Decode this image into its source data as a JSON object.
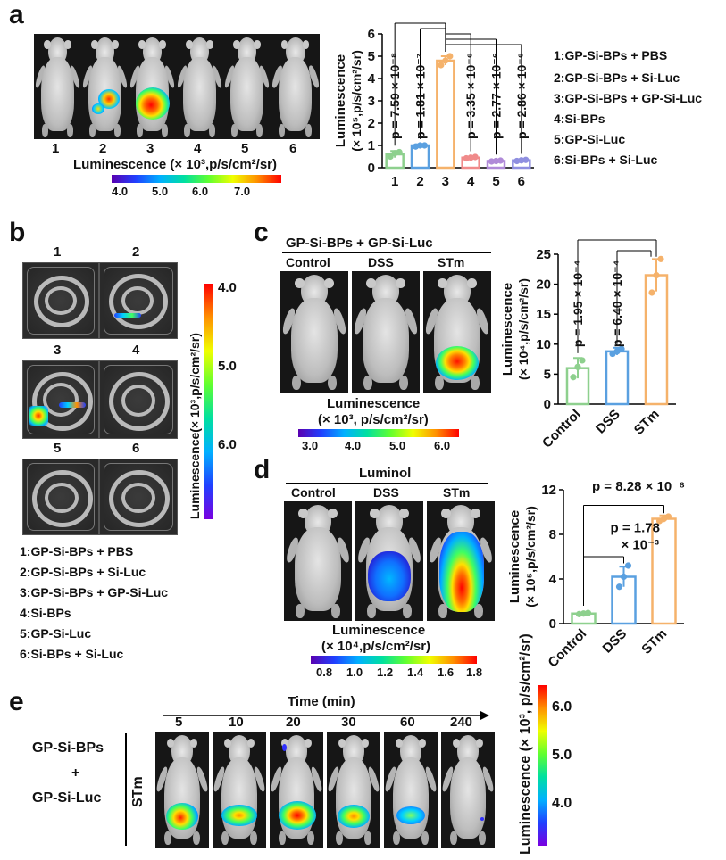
{
  "panels": {
    "a": {
      "label": "a",
      "mouse_numbers": [
        "1",
        "2",
        "3",
        "4",
        "5",
        "6"
      ],
      "colorbar_title": "Luminescence (× 10³,p/s/cm²/sr)",
      "colorbar_ticks": [
        "4.0",
        "5.0",
        "6.0",
        "7.0"
      ],
      "legend": [
        "1:GP-Si-BPs + PBS",
        "2:GP-Si-BPs + Si-Luc",
        "3:GP-Si-BPs + GP-Si-Luc",
        "4:Si-BPs",
        "5:GP-Si-Luc",
        "6:Si-BPs + Si-Luc"
      ],
      "chart": {
        "ylabel_line1": "Luminescence",
        "ylabel_line2": "(× 10⁵,p/s/cm²/sr)",
        "yticks": [
          "0",
          "1",
          "2",
          "3",
          "4",
          "5",
          "6"
        ],
        "xticks": [
          "1",
          "2",
          "3",
          "4",
          "5",
          "6"
        ],
        "pvalues": [
          "p = 7.59 × 10⁻⁸",
          "p = 1.81 × 10⁻⁷",
          "p = 3.35 × 10⁻⁶",
          "p = 2.77 × 10⁻⁶",
          "p = 2.86 × 10⁻⁶"
        ]
      }
    },
    "b": {
      "label": "b",
      "dish_numbers": [
        "1",
        "2",
        "3",
        "4",
        "5",
        "6"
      ],
      "colorbar_title": "Luminescence(× 10³,p/s/cm²/sr)",
      "colorbar_ticks": [
        "4.0",
        "5.0",
        "6.0"
      ],
      "legend": [
        "1:GP-Si-BPs + PBS",
        "2:GP-Si-BPs + Si-Luc",
        "3:GP-Si-BPs + GP-Si-Luc",
        "4:Si-BPs",
        "5:GP-Si-Luc",
        "6:Si-BPs + Si-Luc"
      ]
    },
    "c": {
      "label": "c",
      "title": "GP-Si-BPs + GP-Si-Luc",
      "groups": [
        "Control",
        "DSS",
        "STm"
      ],
      "colorbar_title_line1": "Luminescence",
      "colorbar_title_line2": "(× 10³, p/s/cm²/sr)",
      "colorbar_ticks": [
        "3.0",
        "4.0",
        "5.0",
        "6.0"
      ],
      "chart": {
        "ylabel_line1": "Luminescence",
        "ylabel_line2": "(× 10⁴,p/s/cm²/sr)",
        "yticks": [
          "0",
          "5",
          "10",
          "15",
          "20",
          "25"
        ],
        "xticks": [
          "Control",
          "DSS",
          "STm"
        ],
        "pvalues": [
          "p = 1.95 × 10⁻⁴",
          "p = 6.40 × 10⁻⁴"
        ]
      }
    },
    "d": {
      "label": "d",
      "title": "Luminol",
      "groups": [
        "Control",
        "DSS",
        "STm"
      ],
      "colorbar_title_line1": "Luminescence",
      "colorbar_title_line2": "(× 10⁴,p/s/cm²/sr)",
      "colorbar_ticks": [
        "0.8",
        "1.0",
        "1.2",
        "1.4",
        "1.6",
        "1.8"
      ],
      "chart": {
        "ylabel_line1": "Luminescence",
        "ylabel_line2": "(× 10⁵,p/s/cm²/sr)",
        "yticks": [
          "0",
          "4",
          "8",
          "12"
        ],
        "xticks": [
          "Control",
          "DSS",
          "STm"
        ],
        "p_top": "p = 8.28 × 10⁻⁶",
        "p_mid_line1": "p = 1.78",
        "p_mid_line2": "× 10⁻³"
      }
    },
    "e": {
      "label": "e",
      "axis_title": "Time (min)",
      "times": [
        "5",
        "10",
        "20",
        "30",
        "60",
        "240"
      ],
      "row_label_line1": "GP-Si-BPs",
      "row_label_line2": "+",
      "row_label_line3": "GP-Si-Luc",
      "side_label": "STm",
      "colorbar_title": "Luminescence (× 10³, p/s/cm²/sr)",
      "colorbar_ticks": [
        "4.0",
        "5.0",
        "6.0"
      ]
    }
  },
  "chart_data": [
    {
      "type": "bar",
      "panel": "a",
      "categories": [
        "1",
        "2",
        "3",
        "4",
        "5",
        "6"
      ],
      "values": [
        0.6,
        1.0,
        4.8,
        0.45,
        0.3,
        0.33
      ],
      "errors": [
        0.15,
        0.05,
        0.2,
        0.05,
        0.05,
        0.05
      ],
      "points": [
        [
          0.5,
          0.65,
          0.7
        ],
        [
          0.95,
          1.0,
          1.0
        ],
        [
          4.6,
          4.8,
          5.0
        ],
        [
          0.42,
          0.45,
          0.48
        ],
        [
          0.28,
          0.3,
          0.32
        ],
        [
          0.3,
          0.33,
          0.35
        ]
      ],
      "colors": [
        "#8ed08e",
        "#5aa0e0",
        "#f5b26b",
        "#f08a8a",
        "#b08ad8",
        "#8f8fe0"
      ],
      "ylim": [
        0,
        6
      ]
    },
    {
      "type": "bar",
      "panel": "c",
      "categories": [
        "Control",
        "DSS",
        "STm"
      ],
      "values": [
        6.0,
        8.8,
        21.5
      ],
      "errors": [
        1.7,
        0.6,
        2.7
      ],
      "points": [
        [
          4.5,
          6.2,
          7.3
        ],
        [
          8.4,
          8.8,
          9.2
        ],
        [
          18.6,
          21.5,
          24.2
        ]
      ],
      "colors": [
        "#8ed08e",
        "#5aa0e0",
        "#f5b26b"
      ],
      "ylim": [
        0,
        25
      ]
    },
    {
      "type": "bar",
      "panel": "d",
      "categories": [
        "Control",
        "DSS",
        "STm"
      ],
      "values": [
        0.9,
        4.2,
        9.4
      ],
      "errors": [
        0.1,
        0.9,
        0.3
      ],
      "points": [
        [
          0.85,
          0.9,
          0.95
        ],
        [
          3.3,
          4.2,
          5.2
        ],
        [
          9.2,
          9.4,
          9.6
        ]
      ],
      "colors": [
        "#8ed08e",
        "#5aa0e0",
        "#f5b26b"
      ],
      "ylim": [
        0,
        12
      ]
    }
  ]
}
